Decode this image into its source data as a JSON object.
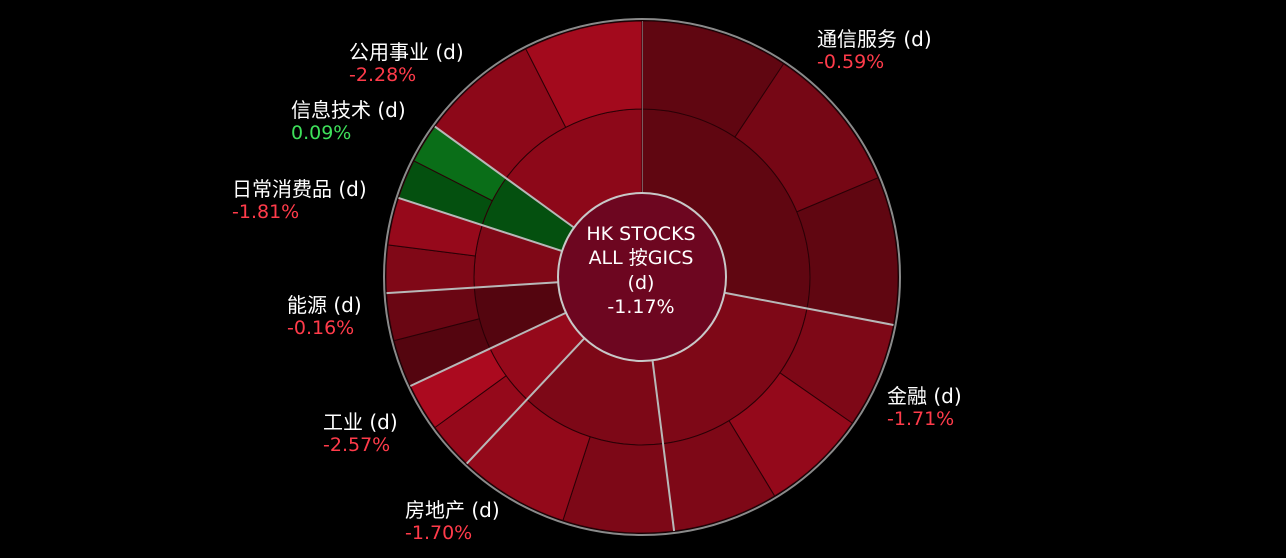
{
  "chart_data": {
    "type": "sunburst",
    "center": {
      "line1": "HK STOCKS",
      "line2": "ALL 按GICS",
      "line3": "(d)",
      "value": "-1.17%"
    },
    "sectors": [
      {
        "key": "comm",
        "name": "通信服务 (d)",
        "pct": "-0.59%",
        "change": -0.59,
        "weight": 28
      },
      {
        "key": "fin",
        "name": "金融 (d)",
        "pct": "-1.71%",
        "change": -1.71,
        "weight": 20
      },
      {
        "key": "re",
        "name": "房地产 (d)",
        "pct": "-1.70%",
        "change": -1.7,
        "weight": 14
      },
      {
        "key": "ind",
        "name": "工业 (d)",
        "pct": "-2.57%",
        "change": -2.57,
        "weight": 6
      },
      {
        "key": "energy",
        "name": "能源 (d)",
        "pct": "-0.16%",
        "change": -0.16,
        "weight": 6
      },
      {
        "key": "staples",
        "name": "日常消费品 (d)",
        "pct": "-1.81%",
        "change": -1.81,
        "weight": 6
      },
      {
        "key": "it",
        "name": "信息技术 (d)",
        "pct": "0.09%",
        "change": 0.09,
        "weight": 5
      },
      {
        "key": "util",
        "name": "公用事业 (d)",
        "pct": "-2.28%",
        "change": -2.28,
        "weight": 15
      }
    ],
    "colors": {
      "negative_text": "#ff3b4a",
      "positive_text": "#3ee05a",
      "ring_stroke": "#8a8a8a"
    }
  }
}
